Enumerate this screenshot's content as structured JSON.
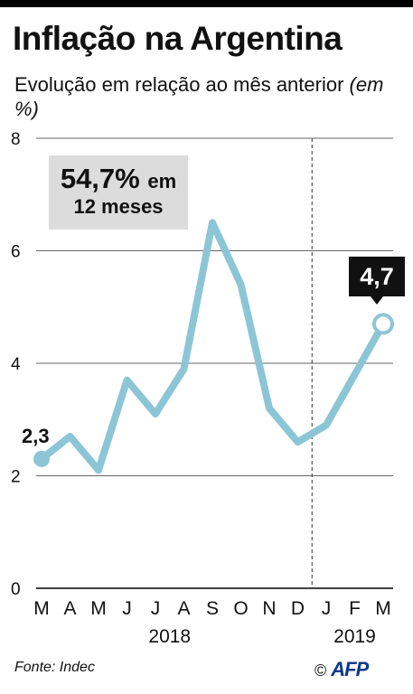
{
  "header": {
    "title": "Inflação na Argentina",
    "subtitle": "Evolução em relação ao mês anterior",
    "subtitle_unit": "(em %)"
  },
  "callout": {
    "value": "54,7%",
    "value_suffix": "em",
    "period": "12 meses"
  },
  "footer": {
    "source": "Fonte: Indec",
    "credit_symbol": "©",
    "credit_logo": "AFP"
  },
  "colors": {
    "line": "#8cc6d6",
    "grid": "#333333",
    "callout_bg": "#dcdcdc"
  },
  "chart_data": {
    "type": "line",
    "categories": [
      "M",
      "A",
      "M",
      "J",
      "J",
      "A",
      "S",
      "O",
      "N",
      "D",
      "J",
      "F",
      "M"
    ],
    "year_labels": [
      {
        "label": "2018",
        "from_index": 0,
        "to_index": 9
      },
      {
        "label": "2019",
        "from_index": 10,
        "to_index": 12
      }
    ],
    "values": [
      2.3,
      2.7,
      2.1,
      3.7,
      3.1,
      3.9,
      6.5,
      5.4,
      3.2,
      2.6,
      2.9,
      3.8,
      4.7
    ],
    "ylim": [
      0,
      8
    ],
    "yticks": [
      "0",
      "2",
      "4",
      "6",
      "8"
    ],
    "grid": true,
    "first_point_label": "2,3",
    "last_point_label": "4,7",
    "year_divider_after_index": 9
  }
}
